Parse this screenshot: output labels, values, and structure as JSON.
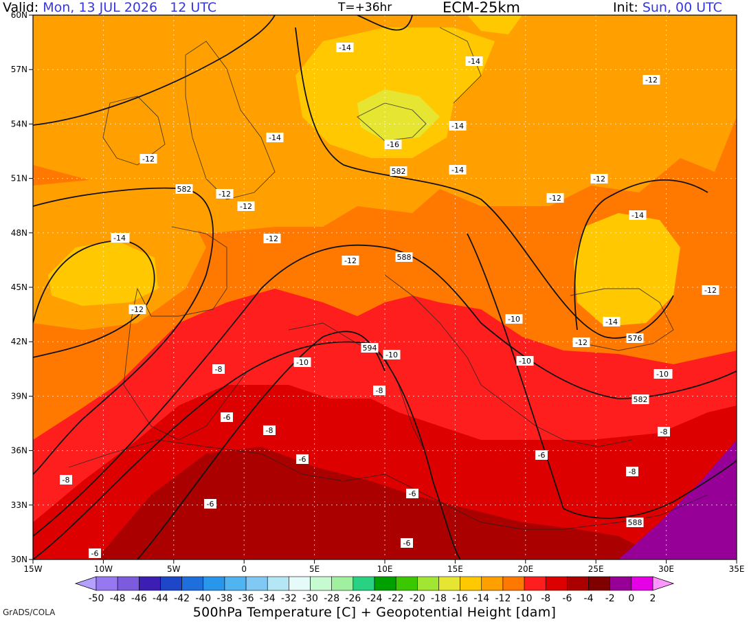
{
  "header": {
    "valid_label": "Valid:",
    "valid_value": "Mon, 13 JUL 2026   12 UTC",
    "lead_time": "T=+36hr",
    "model": "ECM-25km",
    "init_label": "Init:",
    "init_value": "Sun, 00 UTC"
  },
  "axes": {
    "lat_labels": [
      "60N",
      "57N",
      "54N",
      "51N",
      "48N",
      "45N",
      "42N",
      "39N",
      "36N",
      "33N",
      "30N"
    ],
    "lon_labels": [
      "15W",
      "10W",
      "5W",
      "0",
      "5E",
      "10E",
      "15E",
      "20E",
      "25E",
      "30E",
      "35E"
    ]
  },
  "colorbar": {
    "ticks": [
      "-50",
      "-48",
      "-46",
      "-44",
      "-42",
      "-40",
      "-38",
      "-36",
      "-34",
      "-32",
      "-30",
      "-28",
      "-26",
      "-24",
      "-22",
      "-20",
      "-18",
      "-16",
      "-14",
      "-12",
      "-10",
      "-8",
      "-6",
      "-4",
      "-2",
      "0",
      "2"
    ],
    "colors": [
      "#b4a0ff",
      "#9678f0",
      "#7c5cdc",
      "#3c1eb4",
      "#1e46c8",
      "#1e6edc",
      "#2896eb",
      "#50b4f0",
      "#82c8f5",
      "#b4e6f5",
      "#e6fafa",
      "#c8fad2",
      "#a0f0a0",
      "#28d282",
      "#00a000",
      "#3cc800",
      "#a0e632",
      "#e6e632",
      "#ffc800",
      "#ffa000",
      "#ff7800",
      "#ff1e1e",
      "#dc0000",
      "#aa0000",
      "#800000",
      "#960096",
      "#e600e6",
      "#ff96ff"
    ]
  },
  "isotherm_labels": [
    "-14",
    "-14",
    "-12",
    "-14",
    "-14",
    "-16",
    "-12",
    "-14",
    "-12",
    "-12",
    "-12",
    "-14",
    "-12",
    "-12",
    "-14",
    "-12",
    "-12",
    "-10",
    "-14",
    "-12",
    "-10",
    "-10",
    "-10",
    "-8",
    "-10",
    "-8",
    "-6",
    "-8",
    "-8",
    "-6",
    "-6",
    "-8",
    "-6",
    "-6",
    "-6",
    "-8",
    "-6",
    "-12",
    "-14",
    "-10"
  ],
  "height_labels": [
    "582",
    "582",
    "588",
    "594",
    "576",
    "582",
    "588"
  ],
  "footer": {
    "credit": "GrADS/COLA",
    "title": "500hPa Temperature [C] + Geopotential Height [dam]"
  }
}
